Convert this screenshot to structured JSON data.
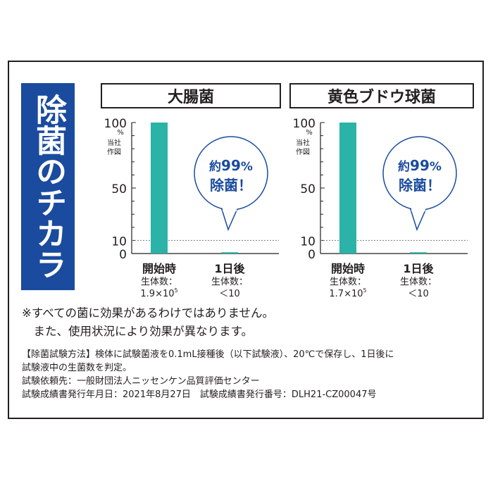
{
  "side_banner": "除菌のチカラ",
  "charts_meta": {
    "y_unit": "%",
    "y_note_line1": "当社",
    "y_note_line2": "作図",
    "y_ticks": [
      "100",
      "50",
      "10",
      "0"
    ]
  },
  "chart_data": [
    {
      "type": "bar",
      "title": "大腸菌",
      "categories": [
        "開始時",
        "1日後"
      ],
      "values": [
        100,
        1
      ],
      "ylim": [
        0,
        100
      ],
      "y_ticks": [
        0,
        10,
        50,
        100
      ],
      "value_labels": [
        {
          "line1": "生体数：",
          "base": "1.9×10",
          "exp": "5"
        },
        {
          "line1": "生体数：",
          "base": "＜10",
          "exp": ""
        }
      ],
      "callout": {
        "line1_prefix": "約",
        "line1_value": "99",
        "line1_unit": "%",
        "line2": "除菌！"
      },
      "bar_color": "#2ab3a6"
    },
    {
      "type": "bar",
      "title": "黄色ブドウ球菌",
      "categories": [
        "開始時",
        "1日後"
      ],
      "values": [
        100,
        1
      ],
      "ylim": [
        0,
        100
      ],
      "y_ticks": [
        0,
        10,
        50,
        100
      ],
      "value_labels": [
        {
          "line1": "生体数：",
          "base": "1.7×10",
          "exp": "5"
        },
        {
          "line1": "生体数：",
          "base": "＜10",
          "exp": ""
        }
      ],
      "callout": {
        "line1_prefix": "約",
        "line1_value": "99",
        "line1_unit": "%",
        "line2": "除菌！"
      },
      "bar_color": "#2ab3a6"
    }
  ],
  "notes": [
    "※すべての菌に効果があるわけではありません。",
    "　また、使用状況により効果が異なります。"
  ],
  "method": [
    "【除菌試験方法】検体に試験菌液を0.1mL接種後（以下試験液）、20℃で保存し、1日後に",
    "試験液中の生菌数を判定。",
    "試験依頼先：一般財団法人ニッセンケン品質評価センター",
    "試験成績書発行年月日：2021年8月27日　試験成績書発行番号：DLH21-CZ00047号"
  ],
  "colors": {
    "brand_blue": "#1a4b9e",
    "bar_teal": "#2ab3a6",
    "text": "#231f20"
  }
}
